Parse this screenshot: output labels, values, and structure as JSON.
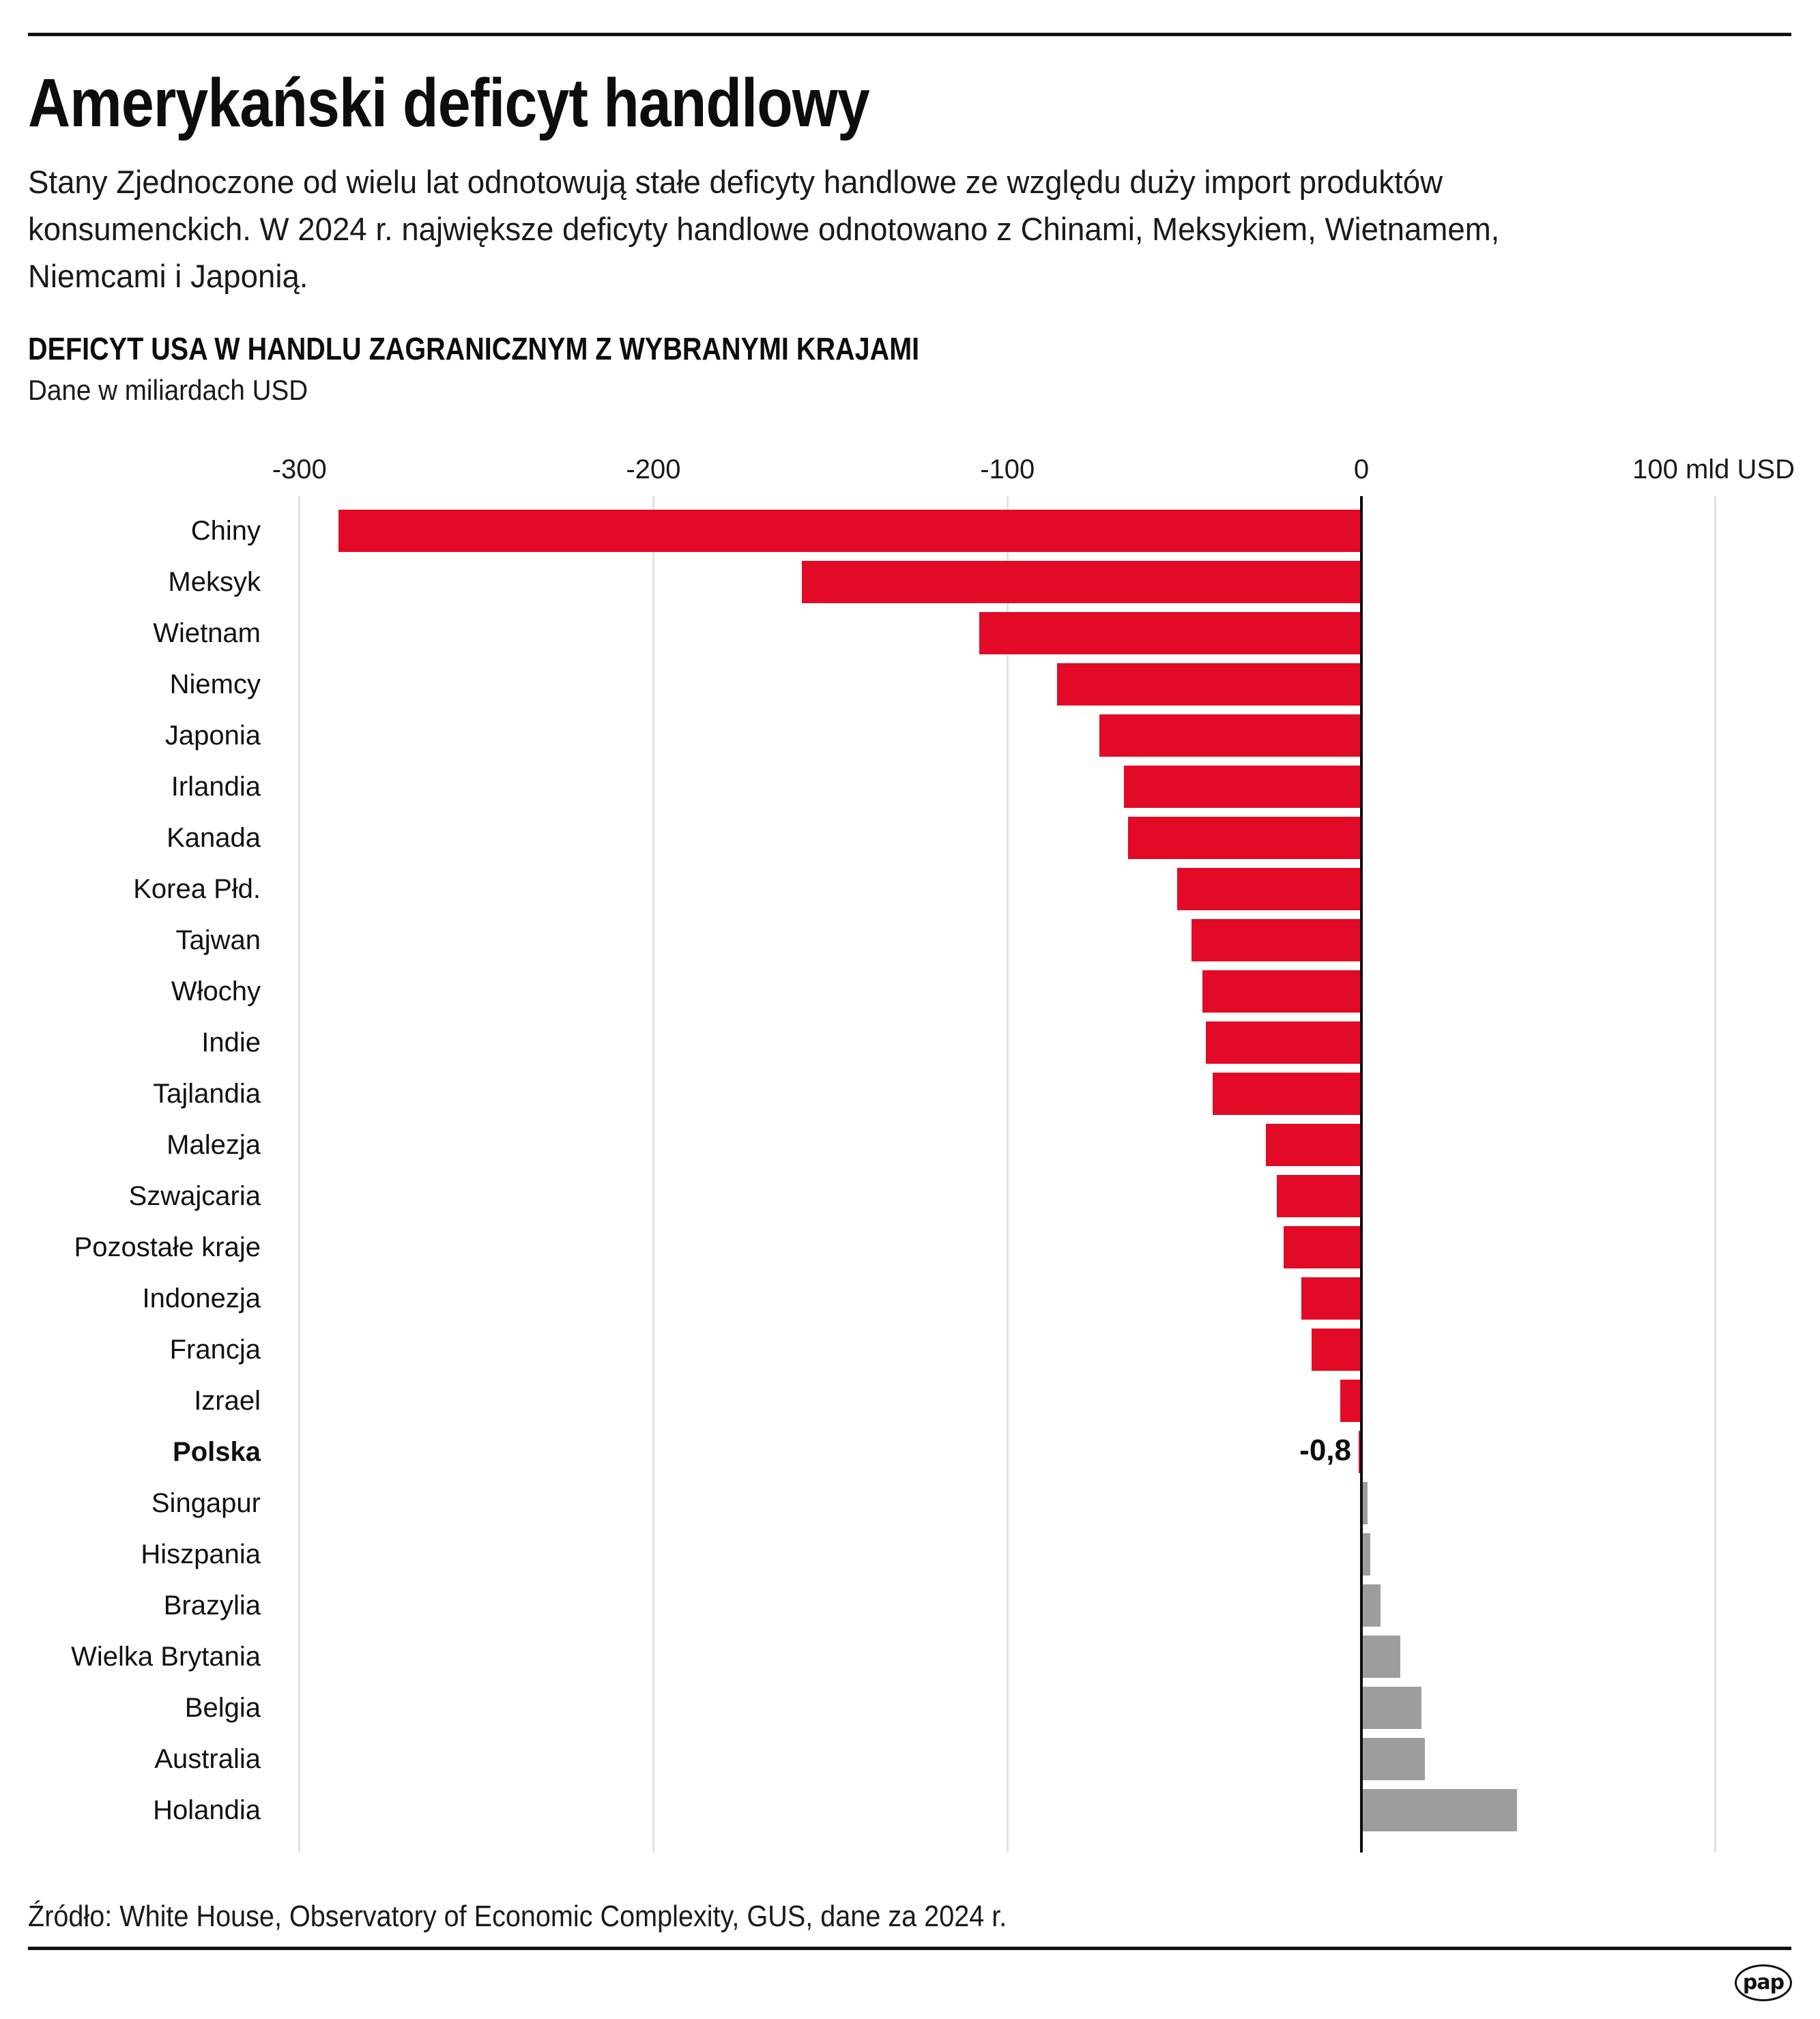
{
  "header": {
    "title": "Amerykański deficyt handlowy",
    "lead_lines": [
      "Stany Zjednoczone od wielu lat odnotowują stałe deficyty handlowe ze względu duży import produktów",
      "konsumenckich. W 2024 r. największe deficyty handlowe odnotowano z Chinami, Meksykiem, Wietnamem,",
      "Niemcami i Japonią."
    ]
  },
  "chart_data": {
    "type": "bar",
    "orientation": "horizontal",
    "title": "DEFICYT USA W HANDLU ZAGRANICZNYM Z WYBRANYMI KRAJAMI",
    "subtitle": "Dane w miliardach USD",
    "xlabel": "mld USD",
    "ylabel": "",
    "xlim": [
      -300,
      100
    ],
    "x_ticks": [
      {
        "value": -300,
        "label": "-300"
      },
      {
        "value": -200,
        "label": "-200"
      },
      {
        "value": -100,
        "label": "-100"
      },
      {
        "value": 0,
        "label": "0"
      },
      {
        "value": 100,
        "label": "100 mld USD"
      }
    ],
    "grid": true,
    "legend": "none",
    "highlight_category": "Polska",
    "colors": {
      "deficit": "#e30a27",
      "surplus": "#9d9d9c",
      "zero_line": "#0d0d0d",
      "grid": "#e3e3e3"
    },
    "categories": [
      "Chiny",
      "Meksyk",
      "Wietnam",
      "Niemcy",
      "Japonia",
      "Irlandia",
      "Kanada",
      "Korea Płd.",
      "Tajwan",
      "Włochy",
      "Indie",
      "Tajlandia",
      "Malezja",
      "Szwajcaria",
      "Pozostałe kraje",
      "Indonezja",
      "Francja",
      "Izrael",
      "Polska",
      "Singapur",
      "Hiszpania",
      "Brazylia",
      "Wielka Brytania",
      "Belgia",
      "Australia",
      "Holandia"
    ],
    "values": [
      -289,
      -158,
      -108,
      -86,
      -74,
      -67,
      -66,
      -52,
      -48,
      -45,
      -44,
      -42,
      -27,
      -24,
      -22,
      -17,
      -14,
      -6,
      -0.8,
      1.8,
      2.6,
      5.4,
      11,
      17,
      18,
      44
    ],
    "data_labels": [
      {
        "category": "Polska",
        "label": "-0,8"
      }
    ]
  },
  "footer": {
    "source": "Źródło: White House, Observatory of Economic Complexity, GUS, dane za 2024 r.",
    "logo_text": "pap"
  }
}
